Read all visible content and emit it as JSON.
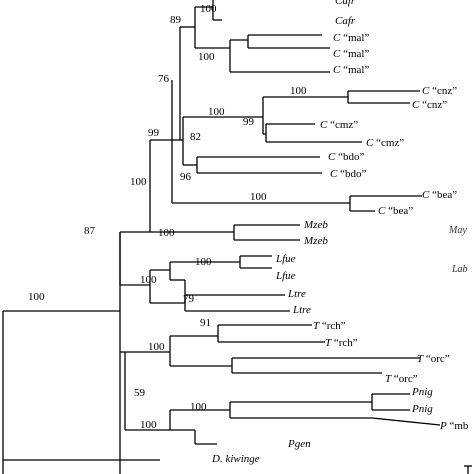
{
  "tree": {
    "tips": [
      {
        "id": "t1",
        "abbr": "Cafr",
        "code": ""
      },
      {
        "id": "t2",
        "abbr": "Cafr",
        "code": ""
      },
      {
        "id": "t3",
        "abbr": "C",
        "code": "“mal”"
      },
      {
        "id": "t4",
        "abbr": "C",
        "code": "“mal”"
      },
      {
        "id": "t5",
        "abbr": "C",
        "code": "“mal”"
      },
      {
        "id": "t6",
        "abbr": "C",
        "code": "“cnz”"
      },
      {
        "id": "t7",
        "abbr": "C",
        "code": "“cnz”"
      },
      {
        "id": "t8",
        "abbr": "C",
        "code": "“cmz”"
      },
      {
        "id": "t9",
        "abbr": "C",
        "code": "“cmz”"
      },
      {
        "id": "t10",
        "abbr": "C",
        "code": "“bdo”"
      },
      {
        "id": "t11",
        "abbr": "C",
        "code": "“bdo”"
      },
      {
        "id": "t12",
        "abbr": "C",
        "code": "“bea”"
      },
      {
        "id": "t13",
        "abbr": "C",
        "code": "“bea”"
      },
      {
        "id": "t14",
        "abbr": "Mzeb",
        "code": ""
      },
      {
        "id": "t15",
        "abbr": "Mzeb",
        "code": ""
      },
      {
        "id": "t16",
        "abbr": "Lfue",
        "code": ""
      },
      {
        "id": "t17",
        "abbr": "Lfue",
        "code": ""
      },
      {
        "id": "t18",
        "abbr": "Ltre",
        "code": ""
      },
      {
        "id": "t19",
        "abbr": "Ltre",
        "code": ""
      },
      {
        "id": "t20",
        "abbr": "T",
        "code": "“rch”"
      },
      {
        "id": "t21",
        "abbr": "T",
        "code": "“rch”"
      },
      {
        "id": "t22",
        "abbr": "T",
        "code": "“orc”"
      },
      {
        "id": "t23",
        "abbr": "T",
        "code": "“orc”"
      },
      {
        "id": "t24",
        "abbr": "Pnig",
        "code": ""
      },
      {
        "id": "t25",
        "abbr": "Pnig",
        "code": ""
      },
      {
        "id": "t26",
        "abbr": "P",
        "code": "“mb"
      },
      {
        "id": "t27",
        "abbr": "Pgen",
        "code": ""
      },
      {
        "id": "t28",
        "abbr": "D. kiwinge",
        "code": ""
      }
    ],
    "support_values": [
      {
        "id": "s_cafr",
        "value": "100"
      },
      {
        "id": "s_89",
        "value": "89"
      },
      {
        "id": "s_mal",
        "value": "100"
      },
      {
        "id": "s_76",
        "value": "76"
      },
      {
        "id": "s_cnz",
        "value": "100"
      },
      {
        "id": "s_cnzcmz",
        "value": "100"
      },
      {
        "id": "s_cmz",
        "value": "99"
      },
      {
        "id": "s_82",
        "value": "82"
      },
      {
        "id": "s_99",
        "value": "99"
      },
      {
        "id": "s_bdo",
        "value": "96"
      },
      {
        "id": "s_100top",
        "value": "100"
      },
      {
        "id": "s_bea",
        "value": "100"
      },
      {
        "id": "s_mzeb",
        "value": "100"
      },
      {
        "id": "s_87",
        "value": "87"
      },
      {
        "id": "s_lfue",
        "value": "100"
      },
      {
        "id": "s_lab",
        "value": "100"
      },
      {
        "id": "s_ltre",
        "value": "79"
      },
      {
        "id": "s_root",
        "value": "100"
      },
      {
        "id": "s_rch",
        "value": "91"
      },
      {
        "id": "s_trop",
        "value": "100"
      },
      {
        "id": "s_59",
        "value": "59"
      },
      {
        "id": "s_pnig",
        "value": "100"
      },
      {
        "id": "s_pet",
        "value": "100"
      }
    ]
  },
  "clade_labels": [
    {
      "id": "c_may",
      "text": "May"
    },
    {
      "id": "c_lab",
      "text": "Lab"
    }
  ]
}
